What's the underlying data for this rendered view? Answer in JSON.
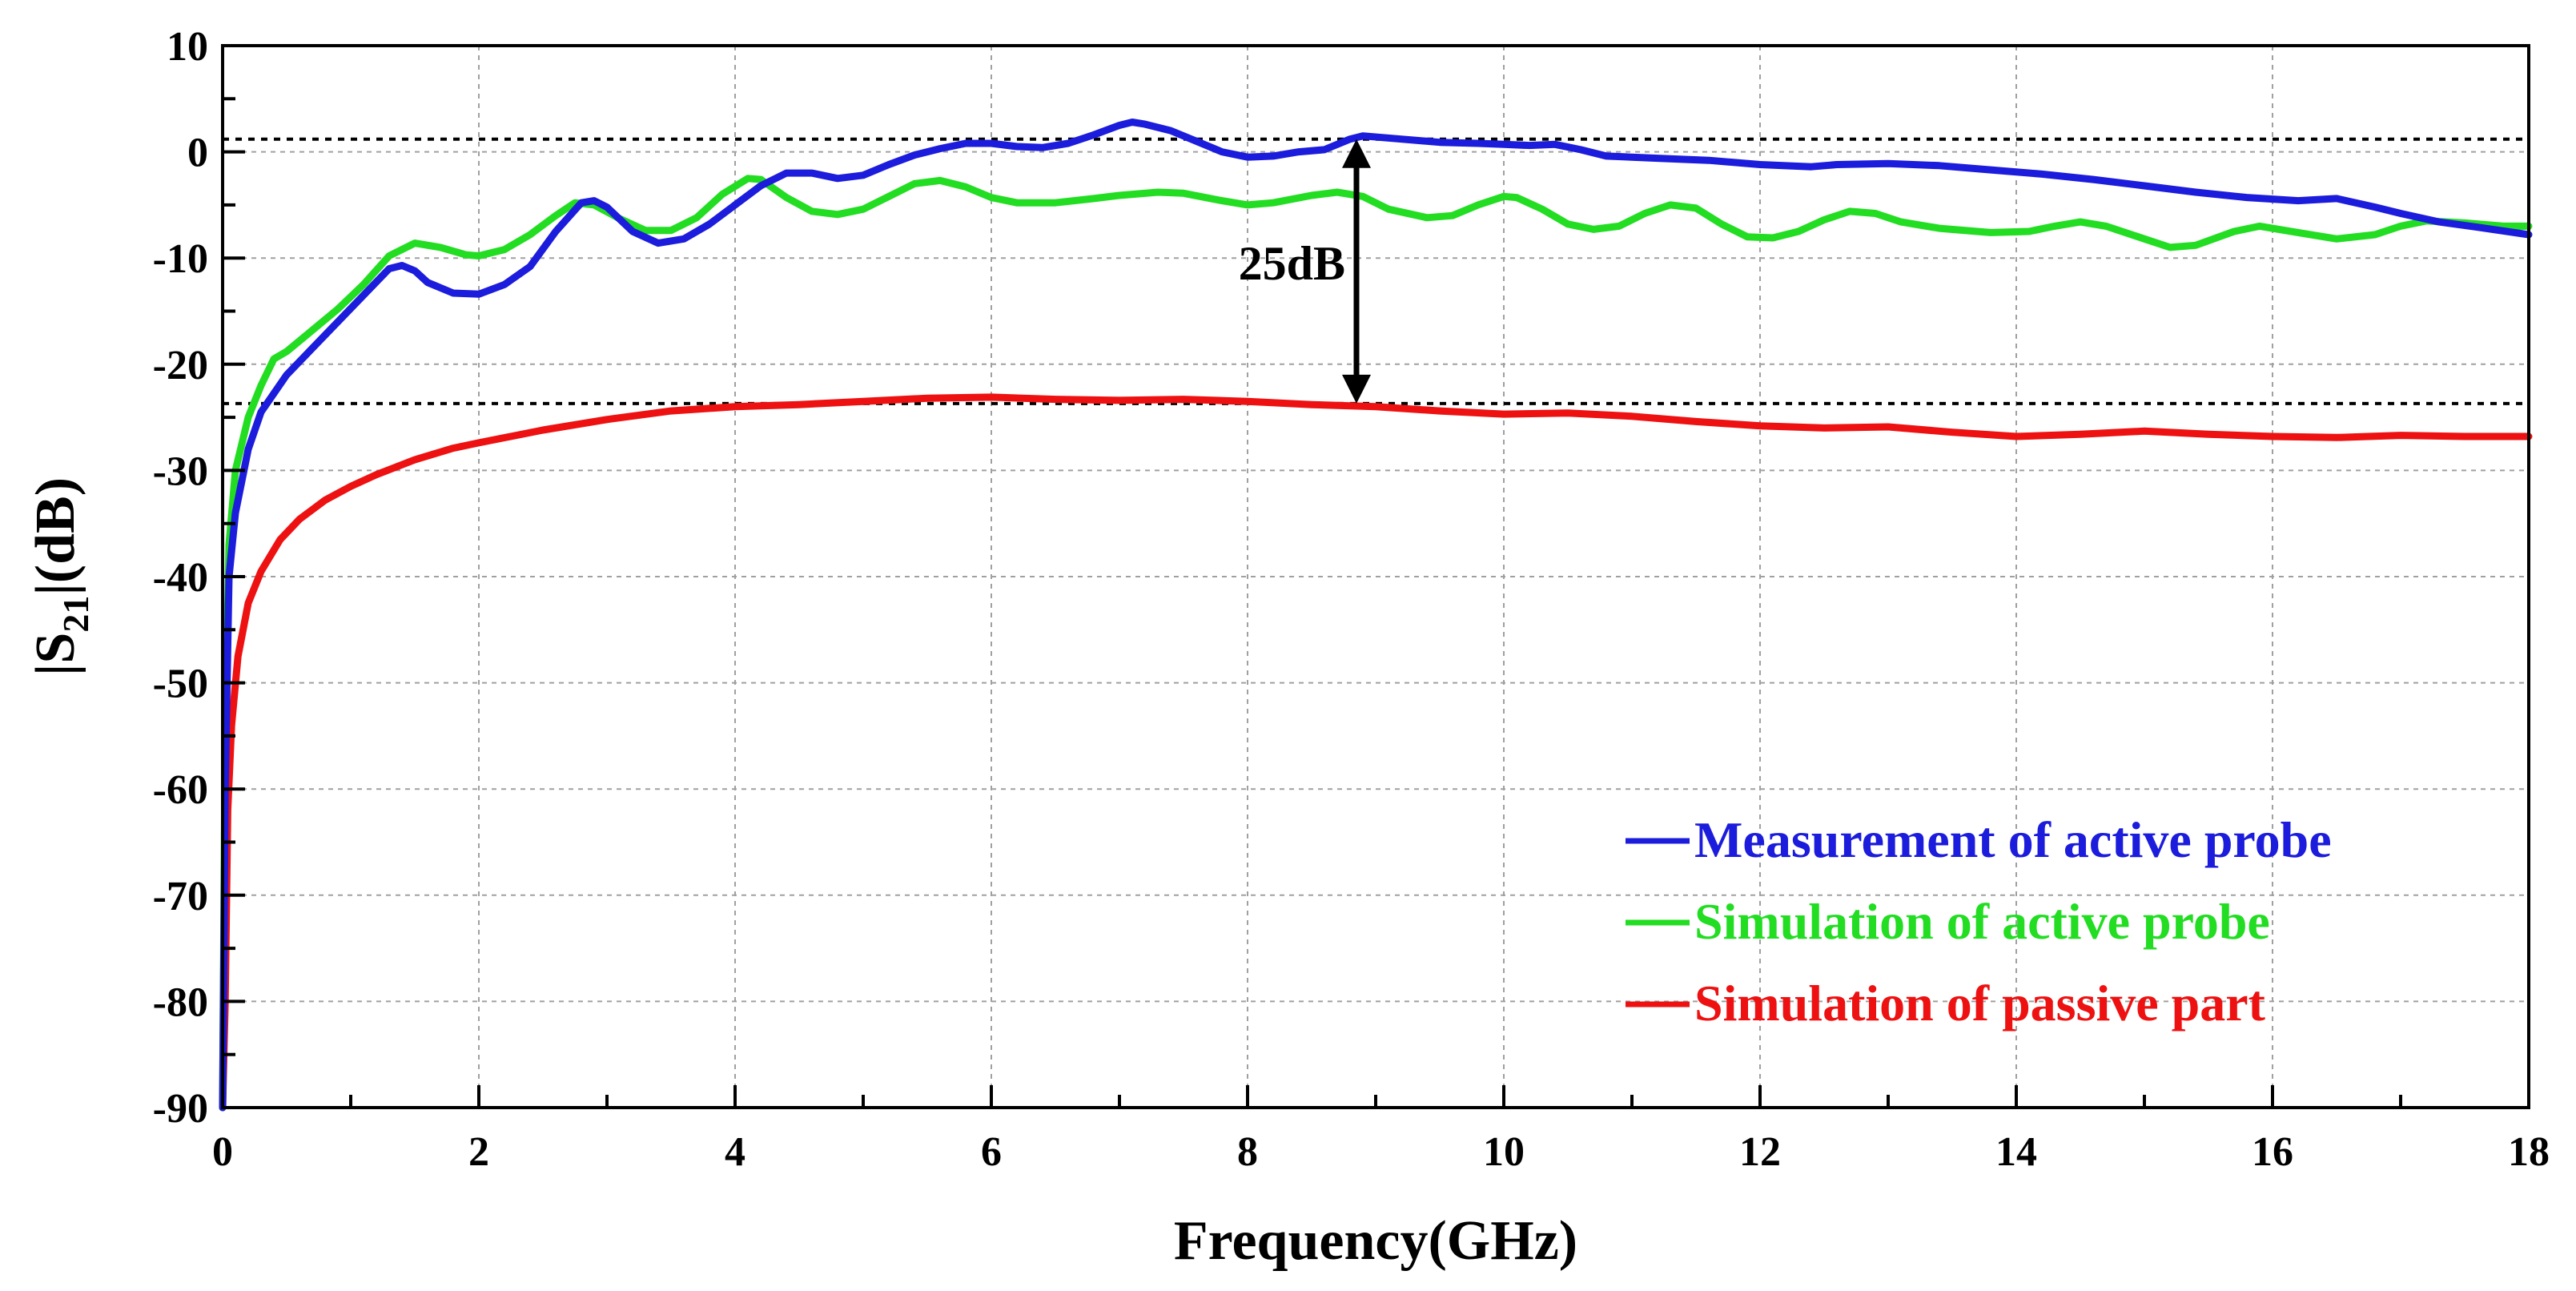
{
  "chart_data": {
    "type": "line",
    "title": "",
    "xlabel": "Frequency(GHz)",
    "ylabel_main": "|S",
    "ylabel_sub": "21",
    "ylabel_tail": "|(dB)",
    "xlim": [
      0,
      18
    ],
    "ylim": [
      -90,
      10
    ],
    "xticks": [
      0,
      2,
      4,
      6,
      8,
      10,
      12,
      14,
      16,
      18
    ],
    "yticks": [
      10,
      0,
      -10,
      -20,
      -30,
      -40,
      -50,
      -60,
      -70,
      -80,
      -90
    ],
    "xtick_labels": [
      "0",
      "2",
      "4",
      "6",
      "8",
      "10",
      "12",
      "14",
      "16",
      "18"
    ],
    "ytick_labels": [
      "10",
      "0",
      "-10",
      "-20",
      "-30",
      "-40",
      "-50",
      "-60",
      "-70",
      "-80",
      "-90"
    ],
    "grid": true,
    "legend_position": "bottom-right",
    "series": [
      {
        "name": "Measurement of active probe",
        "color": "#1c1cdc",
        "points": [
          [
            0.0,
            -90
          ],
          [
            0.02,
            -60
          ],
          [
            0.05,
            -40
          ],
          [
            0.1,
            -34
          ],
          [
            0.2,
            -28
          ],
          [
            0.3,
            -24.5
          ],
          [
            0.5,
            -21
          ],
          [
            0.7,
            -18.5
          ],
          [
            0.9,
            -16
          ],
          [
            1.1,
            -13.5
          ],
          [
            1.3,
            -11
          ],
          [
            1.4,
            -10.7
          ],
          [
            1.5,
            -11.2
          ],
          [
            1.6,
            -12.3
          ],
          [
            1.8,
            -13.3
          ],
          [
            2.0,
            -13.4
          ],
          [
            2.2,
            -12.5
          ],
          [
            2.4,
            -10.8
          ],
          [
            2.6,
            -7.5
          ],
          [
            2.8,
            -4.8
          ],
          [
            2.9,
            -4.6
          ],
          [
            3.0,
            -5.2
          ],
          [
            3.2,
            -7.5
          ],
          [
            3.4,
            -8.6
          ],
          [
            3.6,
            -8.2
          ],
          [
            3.8,
            -6.8
          ],
          [
            4.0,
            -5.0
          ],
          [
            4.2,
            -3.2
          ],
          [
            4.4,
            -2.0
          ],
          [
            4.6,
            -2.0
          ],
          [
            4.8,
            -2.5
          ],
          [
            5.0,
            -2.2
          ],
          [
            5.2,
            -1.2
          ],
          [
            5.4,
            -0.3
          ],
          [
            5.6,
            0.3
          ],
          [
            5.8,
            0.8
          ],
          [
            6.0,
            0.8
          ],
          [
            6.2,
            0.5
          ],
          [
            6.4,
            0.4
          ],
          [
            6.6,
            0.8
          ],
          [
            6.8,
            1.6
          ],
          [
            7.0,
            2.5
          ],
          [
            7.1,
            2.8
          ],
          [
            7.2,
            2.6
          ],
          [
            7.4,
            2.0
          ],
          [
            7.6,
            1.0
          ],
          [
            7.8,
            0.0
          ],
          [
            8.0,
            -0.5
          ],
          [
            8.2,
            -0.4
          ],
          [
            8.4,
            0.0
          ],
          [
            8.6,
            0.2
          ],
          [
            8.8,
            1.2
          ],
          [
            8.9,
            1.5
          ],
          [
            9.2,
            1.2
          ],
          [
            9.5,
            0.9
          ],
          [
            9.8,
            0.8
          ],
          [
            10.0,
            0.7
          ],
          [
            10.2,
            0.6
          ],
          [
            10.4,
            0.7
          ],
          [
            10.6,
            0.2
          ],
          [
            10.8,
            -0.4
          ],
          [
            11.2,
            -0.6
          ],
          [
            11.6,
            -0.8
          ],
          [
            12.0,
            -1.2
          ],
          [
            12.4,
            -1.4
          ],
          [
            12.6,
            -1.2
          ],
          [
            13.0,
            -1.1
          ],
          [
            13.4,
            -1.3
          ],
          [
            13.8,
            -1.7
          ],
          [
            14.2,
            -2.1
          ],
          [
            14.6,
            -2.6
          ],
          [
            15.0,
            -3.2
          ],
          [
            15.4,
            -3.8
          ],
          [
            15.8,
            -4.3
          ],
          [
            16.2,
            -4.6
          ],
          [
            16.5,
            -4.4
          ],
          [
            16.8,
            -5.2
          ],
          [
            17.0,
            -5.8
          ],
          [
            17.3,
            -6.6
          ],
          [
            17.6,
            -7.1
          ],
          [
            18.0,
            -7.8
          ]
        ]
      },
      {
        "name": "Simulation of active probe",
        "color": "#22dd22",
        "points": [
          [
            0.0,
            -90
          ],
          [
            0.02,
            -55
          ],
          [
            0.05,
            -37
          ],
          [
            0.1,
            -30
          ],
          [
            0.2,
            -25
          ],
          [
            0.3,
            -22
          ],
          [
            0.4,
            -19.5
          ],
          [
            0.5,
            -18.8
          ],
          [
            0.7,
            -16.8
          ],
          [
            0.9,
            -14.8
          ],
          [
            1.1,
            -12.5
          ],
          [
            1.3,
            -9.8
          ],
          [
            1.5,
            -8.6
          ],
          [
            1.7,
            -9.0
          ],
          [
            1.9,
            -9.7
          ],
          [
            2.0,
            -9.8
          ],
          [
            2.2,
            -9.2
          ],
          [
            2.4,
            -7.8
          ],
          [
            2.6,
            -6.0
          ],
          [
            2.75,
            -4.8
          ],
          [
            2.9,
            -5.0
          ],
          [
            3.1,
            -6.3
          ],
          [
            3.3,
            -7.4
          ],
          [
            3.5,
            -7.4
          ],
          [
            3.7,
            -6.2
          ],
          [
            3.9,
            -4.0
          ],
          [
            4.1,
            -2.5
          ],
          [
            4.2,
            -2.6
          ],
          [
            4.4,
            -4.3
          ],
          [
            4.6,
            -5.6
          ],
          [
            4.8,
            -5.9
          ],
          [
            5.0,
            -5.4
          ],
          [
            5.2,
            -4.2
          ],
          [
            5.4,
            -3.0
          ],
          [
            5.6,
            -2.7
          ],
          [
            5.8,
            -3.3
          ],
          [
            6.0,
            -4.3
          ],
          [
            6.2,
            -4.8
          ],
          [
            6.5,
            -4.8
          ],
          [
            6.8,
            -4.4
          ],
          [
            7.0,
            -4.1
          ],
          [
            7.3,
            -3.8
          ],
          [
            7.5,
            -3.9
          ],
          [
            7.8,
            -4.6
          ],
          [
            8.0,
            -5.0
          ],
          [
            8.2,
            -4.8
          ],
          [
            8.5,
            -4.1
          ],
          [
            8.7,
            -3.8
          ],
          [
            8.9,
            -4.2
          ],
          [
            9.1,
            -5.4
          ],
          [
            9.4,
            -6.2
          ],
          [
            9.6,
            -6.0
          ],
          [
            9.8,
            -5.0
          ],
          [
            10.0,
            -4.2
          ],
          [
            10.1,
            -4.3
          ],
          [
            10.3,
            -5.4
          ],
          [
            10.5,
            -6.8
          ],
          [
            10.7,
            -7.3
          ],
          [
            10.9,
            -7.0
          ],
          [
            11.1,
            -5.8
          ],
          [
            11.3,
            -5.0
          ],
          [
            11.5,
            -5.3
          ],
          [
            11.7,
            -6.8
          ],
          [
            11.9,
            -8.0
          ],
          [
            12.1,
            -8.1
          ],
          [
            12.3,
            -7.5
          ],
          [
            12.5,
            -6.4
          ],
          [
            12.7,
            -5.6
          ],
          [
            12.9,
            -5.8
          ],
          [
            13.1,
            -6.6
          ],
          [
            13.4,
            -7.2
          ],
          [
            13.8,
            -7.6
          ],
          [
            14.1,
            -7.5
          ],
          [
            14.3,
            -7.0
          ],
          [
            14.5,
            -6.6
          ],
          [
            14.7,
            -7.0
          ],
          [
            15.0,
            -8.2
          ],
          [
            15.2,
            -9.0
          ],
          [
            15.4,
            -8.8
          ],
          [
            15.7,
            -7.5
          ],
          [
            15.9,
            -7.0
          ],
          [
            16.2,
            -7.6
          ],
          [
            16.5,
            -8.2
          ],
          [
            16.8,
            -7.8
          ],
          [
            17.0,
            -7.0
          ],
          [
            17.2,
            -6.5
          ],
          [
            17.5,
            -6.7
          ],
          [
            17.8,
            -7.0
          ],
          [
            18.0,
            -7.0
          ]
        ]
      },
      {
        "name": "Simulation of passive part",
        "color": "#ee1111",
        "points": [
          [
            0.0,
            -90
          ],
          [
            0.02,
            -80
          ],
          [
            0.04,
            -62
          ],
          [
            0.07,
            -54
          ],
          [
            0.12,
            -47.5
          ],
          [
            0.2,
            -42.5
          ],
          [
            0.3,
            -39.5
          ],
          [
            0.45,
            -36.5
          ],
          [
            0.6,
            -34.6
          ],
          [
            0.8,
            -32.8
          ],
          [
            1.0,
            -31.5
          ],
          [
            1.2,
            -30.4
          ],
          [
            1.5,
            -29.0
          ],
          [
            1.8,
            -27.9
          ],
          [
            2.0,
            -27.4
          ],
          [
            2.5,
            -26.2
          ],
          [
            3.0,
            -25.2
          ],
          [
            3.5,
            -24.4
          ],
          [
            4.0,
            -24.0
          ],
          [
            4.5,
            -23.8
          ],
          [
            5.0,
            -23.5
          ],
          [
            5.5,
            -23.2
          ],
          [
            6.0,
            -23.1
          ],
          [
            6.5,
            -23.3
          ],
          [
            7.0,
            -23.4
          ],
          [
            7.5,
            -23.3
          ],
          [
            8.0,
            -23.5
          ],
          [
            8.5,
            -23.8
          ],
          [
            9.0,
            -24.0
          ],
          [
            9.5,
            -24.4
          ],
          [
            10.0,
            -24.7
          ],
          [
            10.5,
            -24.6
          ],
          [
            11.0,
            -24.9
          ],
          [
            11.5,
            -25.4
          ],
          [
            12.0,
            -25.8
          ],
          [
            12.5,
            -26.0
          ],
          [
            13.0,
            -25.9
          ],
          [
            13.5,
            -26.4
          ],
          [
            14.0,
            -26.8
          ],
          [
            14.5,
            -26.6
          ],
          [
            15.0,
            -26.3
          ],
          [
            15.5,
            -26.6
          ],
          [
            16.0,
            -26.8
          ],
          [
            16.5,
            -26.9
          ],
          [
            17.0,
            -26.7
          ],
          [
            17.5,
            -26.8
          ],
          [
            18.0,
            -26.8
          ]
        ]
      }
    ],
    "reference_lines": [
      {
        "name": "upper-reference-line",
        "y": 1.2
      },
      {
        "name": "lower-reference-line",
        "y": -23.7
      }
    ],
    "annotations": [
      {
        "text": "25dB",
        "x": 8.85,
        "y_from": 1.2,
        "y_to": -23.7
      }
    ]
  }
}
